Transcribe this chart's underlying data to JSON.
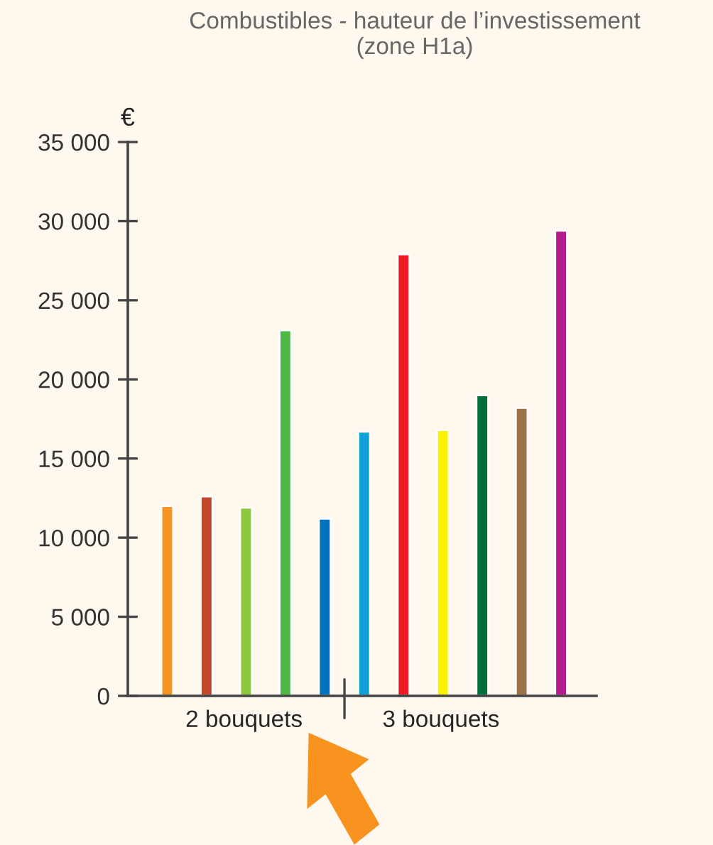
{
  "chart_data": {
    "type": "bar",
    "title": "Combustibles - hauteur de l’investissement\n(zone H1a)",
    "ylabel": "€",
    "categories": [
      null,
      null,
      null,
      null,
      null,
      null,
      null,
      null,
      null,
      null,
      null
    ],
    "values": [
      12000,
      12600,
      11900,
      23100,
      11200,
      16700,
      27900,
      16800,
      19000,
      18200,
      29400
    ],
    "colors": [
      "#f7931e",
      "#c1492b",
      "#8dc63f",
      "#4db848",
      "#0071bc",
      "#12a0d9",
      "#ed1c24",
      "#fff200",
      "#006e3a",
      "#9a7447",
      "#b5198e"
    ],
    "ylim": [
      0,
      35000
    ],
    "yticks": [
      {
        "value": 0,
        "label": "0"
      },
      {
        "value": 5000,
        "label": "5 000"
      },
      {
        "value": 10000,
        "label": "10 000"
      },
      {
        "value": 15000,
        "label": "15 000"
      },
      {
        "value": 20000,
        "label": "20 000"
      },
      {
        "value": 25000,
        "label": "25 000"
      },
      {
        "value": 30000,
        "label": "30 000"
      },
      {
        "value": 35000,
        "label": "35 000"
      }
    ],
    "annotations": [
      "2 bouquets",
      "3 bouquets"
    ],
    "grid": false,
    "legend": false
  }
}
